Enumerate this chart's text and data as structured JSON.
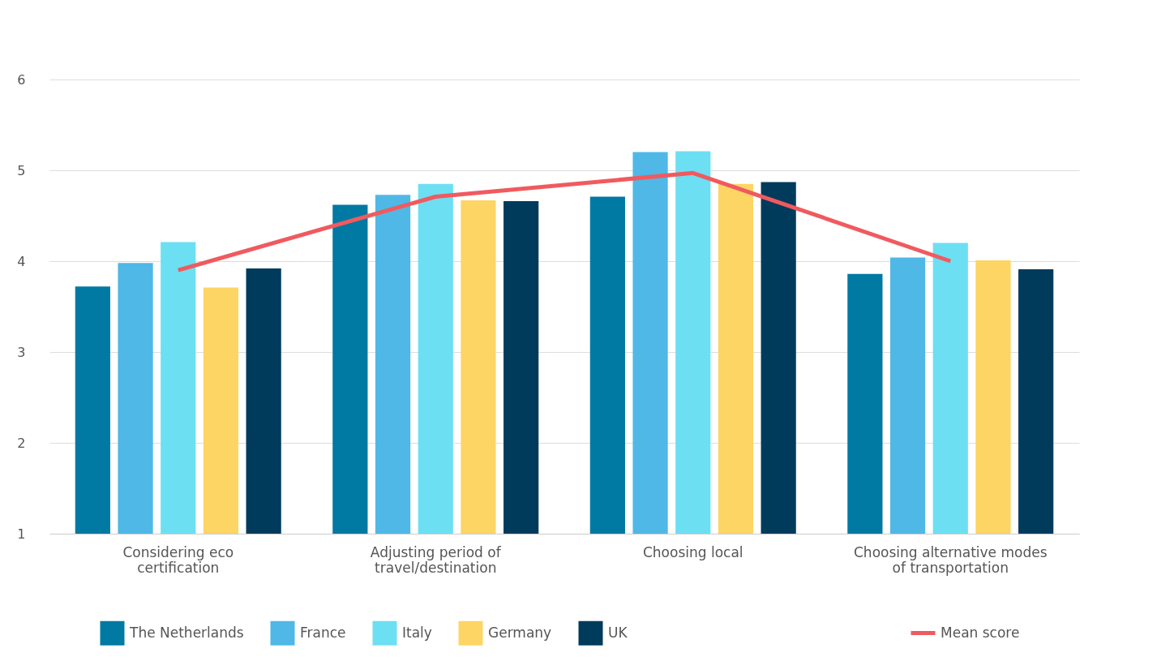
{
  "chart_data": {
    "type": "bar",
    "categories": [
      "Considering eco certification",
      "Adjusting period of travel/destination",
      "Choosing local",
      "Choosing alternative modes of transportation"
    ],
    "series": [
      {
        "name": "The Netherlands",
        "color": "#0079a3",
        "values": [
          3.72,
          4.62,
          4.71,
          3.86
        ]
      },
      {
        "name": "France",
        "color": "#4fb8e6",
        "values": [
          3.98,
          4.73,
          5.2,
          4.04
        ]
      },
      {
        "name": "Italy",
        "color": "#6ddff2",
        "values": [
          4.21,
          4.85,
          5.21,
          4.2
        ]
      },
      {
        "name": "Germany",
        "color": "#fdd565",
        "values": [
          3.71,
          4.67,
          4.85,
          4.01
        ]
      },
      {
        "name": "UK",
        "color": "#003b5c",
        "values": [
          3.92,
          4.66,
          4.87,
          3.91
        ]
      },
      {
        "name": "Mean score",
        "color": "#f05a5f",
        "type": "line",
        "values": [
          3.9,
          4.71,
          4.97,
          4.0
        ]
      }
    ],
    "ylim": [
      1,
      6
    ],
    "yticks": [
      1,
      2,
      3,
      4,
      5,
      6
    ],
    "grid": "y",
    "legend": "bottom"
  }
}
